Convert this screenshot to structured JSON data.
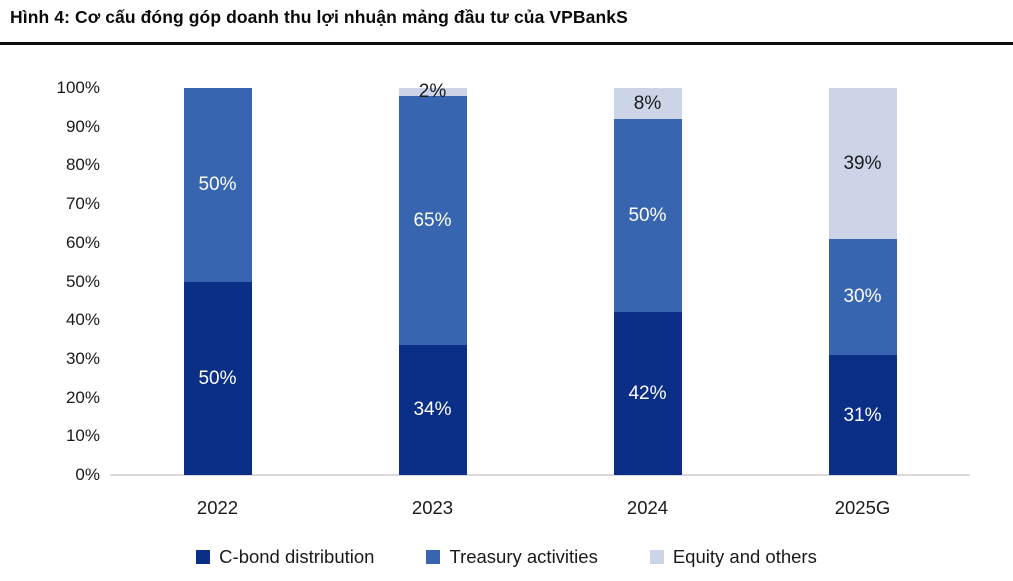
{
  "header": {
    "title": "Hình 4: Cơ cấu đóng góp doanh thu lợi nhuận mảng đầu tư của VPBankS"
  },
  "colors": {
    "title_rule": "#0d0d0d",
    "axis_baseline": "#d9d9d9",
    "navy": "#0b2e87",
    "medium_blue": "#3765b0",
    "light_blue": "#ccd5e8",
    "tick_text": "#1a1a1a"
  },
  "chart_data": {
    "type": "bar",
    "stacked": true,
    "title": "Hình 4: Cơ cấu đóng góp doanh thu lợi nhuận mảng đầu tư của VPBankS",
    "categories": [
      "2022",
      "2023",
      "2024",
      "2025G"
    ],
    "series": [
      {
        "name": "C-bond distribution",
        "color": "#0b2e87",
        "label_color": "#ffffff",
        "values": [
          50,
          34,
          42,
          31
        ]
      },
      {
        "name": "Treasury activities",
        "color": "#3765b0",
        "label_color": "#ffffff",
        "values": [
          50,
          65,
          50,
          30
        ]
      },
      {
        "name": "Equity and others",
        "color": "#ccd5e8",
        "label_color": "#1a1a1a",
        "values": [
          0,
          2,
          8,
          39
        ]
      }
    ],
    "data_labels": [
      [
        "50%",
        "34%",
        "42%",
        "31%"
      ],
      [
        "50%",
        "65%",
        "50%",
        "30%"
      ],
      [
        "",
        "2%",
        "8%",
        "39%"
      ]
    ],
    "xlabel": "",
    "ylabel": "",
    "ylim": [
      0,
      100
    ],
    "y_tick_labels": [
      "0%",
      "10%",
      "20%",
      "30%",
      "40%",
      "50%",
      "60%",
      "70%",
      "80%",
      "90%",
      "100%"
    ],
    "grid": false,
    "legend_position": "bottom"
  }
}
